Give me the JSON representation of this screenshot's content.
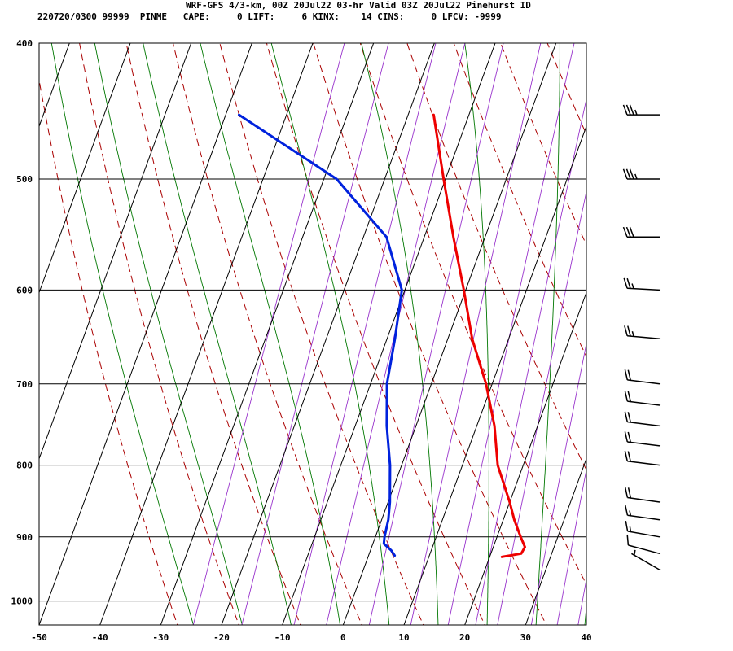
{
  "title": "WRF-GFS 4/3-km, 00Z 20Jul22 03-hr Valid 03Z 20Jul22 Pinehurst ID",
  "indices": "220720/0300 99999  PINME   CAPE:     0 LIFT:     6 KINX:    14 CINS:     0 LFCV: -9999",
  "colors": {
    "temperature": "#ee0000",
    "dewpoint": "#0022dd",
    "dry_adiabat": "#aa0000",
    "moist_adiabat": "#007700",
    "mixing_ratio": "#9933cc",
    "grid": "#000000"
  },
  "chart_data": {
    "type": "line",
    "chart_kind": "skew-T log-P sounding",
    "x_axis": {
      "label": "",
      "range": [
        -50,
        40
      ],
      "ticks": [
        -50,
        -40,
        -30,
        -20,
        -10,
        0,
        10,
        20,
        30,
        40
      ]
    },
    "y_axis": {
      "label": "",
      "scale": "log",
      "range": [
        1040,
        400
      ],
      "ticks": [
        400,
        500,
        600,
        700,
        800,
        900,
        1000
      ]
    },
    "grid": true,
    "series": [
      {
        "role": "temperature",
        "points": [
          {
            "p": 450,
            "t": -15.8
          },
          {
            "p": 500,
            "t": -10.3
          },
          {
            "p": 550,
            "t": -5.2
          },
          {
            "p": 600,
            "t": -0.3
          },
          {
            "p": 650,
            "t": 4.0
          },
          {
            "p": 700,
            "t": 9.0
          },
          {
            "p": 750,
            "t": 12.9
          },
          {
            "p": 800,
            "t": 15.8
          },
          {
            "p": 850,
            "t": 20.0
          },
          {
            "p": 875,
            "t": 21.8
          },
          {
            "p": 900,
            "t": 23.9
          },
          {
            "p": 915,
            "t": 25.2
          },
          {
            "p": 925,
            "t": 25.0
          },
          {
            "p": 930,
            "t": 22.0
          }
        ]
      },
      {
        "role": "dewpoint",
        "points": [
          {
            "p": 450,
            "t": -47.8
          },
          {
            "p": 500,
            "t": -27.9
          },
          {
            "p": 550,
            "t": -16.2
          },
          {
            "p": 600,
            "t": -10.5
          },
          {
            "p": 650,
            "t": -8.7
          },
          {
            "p": 700,
            "t": -7.3
          },
          {
            "p": 750,
            "t": -4.8
          },
          {
            "p": 800,
            "t": -1.9
          },
          {
            "p": 850,
            "t": 0.3
          },
          {
            "p": 875,
            "t": 1.1
          },
          {
            "p": 900,
            "t": 1.5
          },
          {
            "p": 910,
            "t": 1.8
          },
          {
            "p": 920,
            "t": 3.4
          },
          {
            "p": 928,
            "t": 4.3
          }
        ]
      }
    ],
    "wind_barbs": [
      {
        "p": 450,
        "direction": 270,
        "speed_kt": 35
      },
      {
        "p": 500,
        "direction": 270,
        "speed_kt": 35
      },
      {
        "p": 550,
        "direction": 270,
        "speed_kt": 30
      },
      {
        "p": 600,
        "direction": 273,
        "speed_kt": 25
      },
      {
        "p": 650,
        "direction": 275,
        "speed_kt": 25
      },
      {
        "p": 700,
        "direction": 277,
        "speed_kt": 20
      },
      {
        "p": 725,
        "direction": 277,
        "speed_kt": 20
      },
      {
        "p": 750,
        "direction": 277,
        "speed_kt": 20
      },
      {
        "p": 775,
        "direction": 277,
        "speed_kt": 20
      },
      {
        "p": 800,
        "direction": 277,
        "speed_kt": 20
      },
      {
        "p": 850,
        "direction": 278,
        "speed_kt": 20
      },
      {
        "p": 875,
        "direction": 278,
        "speed_kt": 15
      },
      {
        "p": 900,
        "direction": 280,
        "speed_kt": 15
      },
      {
        "p": 925,
        "direction": 285,
        "speed_kt": 10
      },
      {
        "p": 950,
        "direction": 300,
        "speed_kt": 5
      }
    ]
  }
}
